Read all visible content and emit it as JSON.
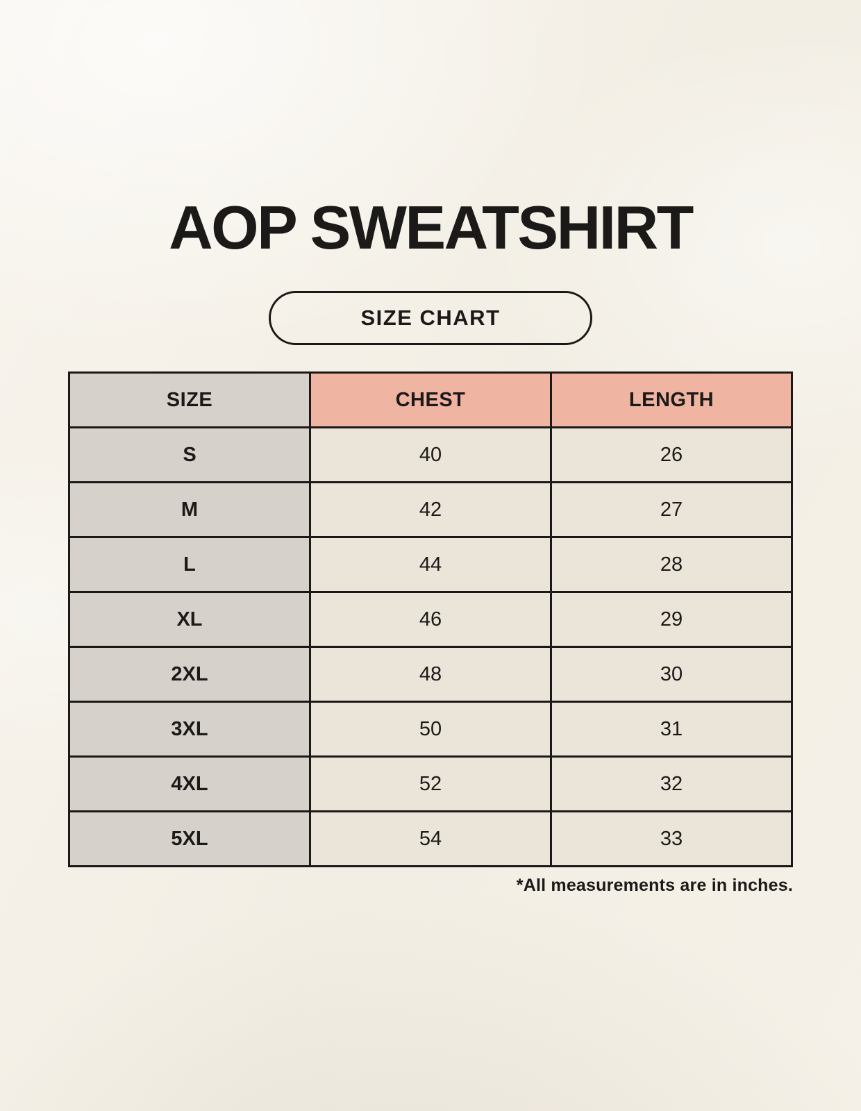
{
  "page": {
    "title": "AOP SWEATSHIRT",
    "badge_label": "SIZE CHART",
    "footnote": "*All measurements are in inches."
  },
  "colors": {
    "background": "#f4f0e7",
    "text": "#1c1a18",
    "border": "#1b1917",
    "header_accent": "#efb4a2",
    "size_column": "#d7d1cb",
    "cell": "#eae4d9"
  },
  "chart_data": {
    "type": "table",
    "title": "AOP SWEATSHIRT",
    "subtitle": "SIZE CHART",
    "columns": [
      "SIZE",
      "CHEST",
      "LENGTH"
    ],
    "rows": [
      [
        "S",
        "40",
        "26"
      ],
      [
        "M",
        "42",
        "27"
      ],
      [
        "L",
        "44",
        "28"
      ],
      [
        "XL",
        "46",
        "29"
      ],
      [
        "2XL",
        "48",
        "30"
      ],
      [
        "3XL",
        "50",
        "31"
      ],
      [
        "4XL",
        "52",
        "32"
      ],
      [
        "5XL",
        "54",
        "33"
      ]
    ],
    "units": "inches",
    "footnote": "*All measurements are in inches.",
    "layout": {
      "header_fill": [
        "size_column",
        "header_accent",
        "header_accent"
      ],
      "grid": "on"
    }
  }
}
